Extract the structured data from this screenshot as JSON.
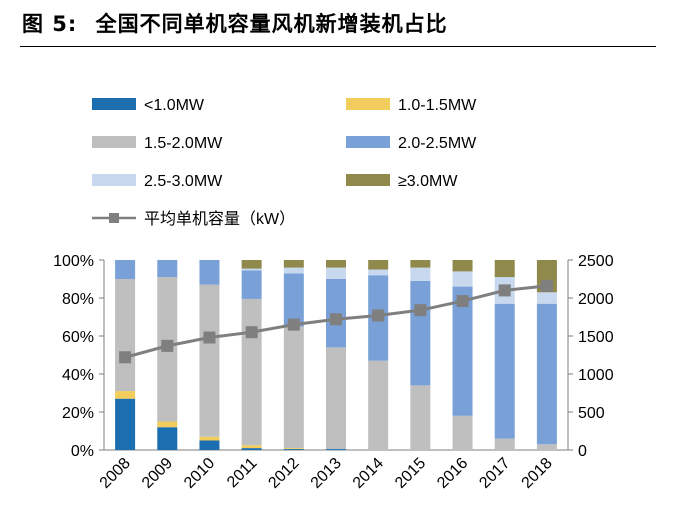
{
  "figure": {
    "number": "图 5:",
    "title": "全国不同单机容量风机新增装机占比"
  },
  "chart_data": {
    "type": "bar",
    "stacked": true,
    "categories": [
      "2008",
      "2009",
      "2010",
      "2011",
      "2012",
      "2013",
      "2014",
      "2015",
      "2016",
      "2017",
      "2018"
    ],
    "y_left": {
      "ticks": [
        "0%",
        "20%",
        "40%",
        "60%",
        "80%",
        "100%"
      ],
      "ylim": [
        0,
        100
      ]
    },
    "y_right": {
      "ticks": [
        "0",
        "500",
        "1000",
        "1500",
        "2000",
        "2500"
      ],
      "ylim": [
        0,
        2500
      ]
    },
    "series": [
      {
        "name": "<1.0MW",
        "color": "#1b6fb0",
        "values": [
          27,
          12,
          5,
          1,
          0.5,
          0.5,
          0,
          0,
          0,
          0,
          0
        ]
      },
      {
        "name": "1.0-1.5MW",
        "color": "#f2cd5c",
        "values": [
          4,
          3,
          2,
          1.5,
          0.5,
          0,
          0,
          0,
          0,
          0,
          0
        ]
      },
      {
        "name": "1.5-2.0MW",
        "color": "#bfbfbf",
        "values": [
          59,
          76,
          80,
          77,
          64,
          53.5,
          47,
          34,
          18,
          6,
          3
        ]
      },
      {
        "name": "2.0-2.5MW",
        "color": "#7aa1d7",
        "values": [
          10,
          9,
          13,
          15,
          28,
          36,
          45,
          55,
          68,
          71,
          74
        ]
      },
      {
        "name": "2.5-3.0MW",
        "color": "#c7d8ef",
        "values": [
          0,
          0,
          0,
          1,
          3,
          6,
          3,
          7,
          8,
          14,
          6
        ]
      },
      {
        "name": "≥3.0MW",
        "color": "#8f8a4c",
        "values": [
          0,
          0,
          0,
          4.5,
          4,
          4,
          5,
          4,
          6,
          9,
          17
        ]
      }
    ],
    "line": {
      "name": "平均单机容量（kW）",
      "color": "#7f7f7f",
      "axis": "right",
      "values": [
        1220,
        1370,
        1480,
        1550,
        1650,
        1720,
        1770,
        1840,
        1960,
        2100,
        2160
      ]
    }
  }
}
